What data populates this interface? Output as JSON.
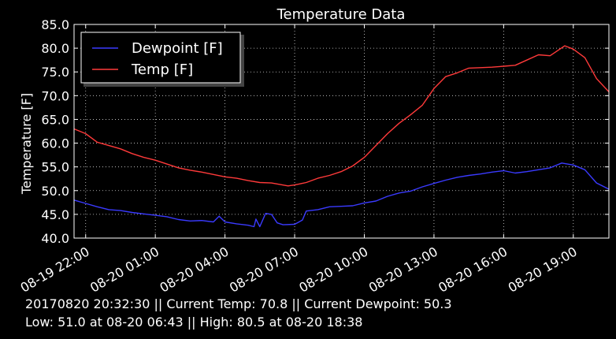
{
  "chart_data": {
    "type": "line",
    "title": "Temperature Data",
    "ylabel": "Temperature [F]",
    "xlabel": "",
    "ylim": [
      40,
      85
    ],
    "xlim": [
      "08-19 21:30",
      "08-20 20:32"
    ],
    "yticks": [
      "40.0",
      "45.0",
      "50.0",
      "55.0",
      "60.0",
      "65.0",
      "70.0",
      "75.0",
      "80.0",
      "85.0"
    ],
    "xticks": [
      "08-19 22:00",
      "08-20 01:00",
      "08-20 04:00",
      "08-20 07:00",
      "08-20 10:00",
      "08-20 13:00",
      "08-20 16:00",
      "08-20 19:00"
    ],
    "grid": true,
    "legend_position": "top-left",
    "series": [
      {
        "name": "Dewpoint [F]",
        "color": "#3a3aff",
        "points": [
          [
            "08-19 21:30",
            48.0
          ],
          [
            "08-19 22:00",
            47.3
          ],
          [
            "08-19 22:30",
            46.6
          ],
          [
            "08-19 23:00",
            46.0
          ],
          [
            "08-19 23:30",
            45.8
          ],
          [
            "08-20 00:00",
            45.4
          ],
          [
            "08-20 00:30",
            45.1
          ],
          [
            "08-20 01:00",
            44.8
          ],
          [
            "08-20 01:30",
            44.5
          ],
          [
            "08-20 02:00",
            43.9
          ],
          [
            "08-20 02:30",
            43.6
          ],
          [
            "08-20 03:00",
            43.7
          ],
          [
            "08-20 03:30",
            43.4
          ],
          [
            "08-20 03:45",
            44.6
          ],
          [
            "08-20 04:00",
            43.4
          ],
          [
            "08-20 04:30",
            43.0
          ],
          [
            "08-20 05:00",
            42.7
          ],
          [
            "08-20 05:15",
            42.4
          ],
          [
            "08-20 05:20",
            44.0
          ],
          [
            "08-20 05:30",
            42.4
          ],
          [
            "08-20 05:45",
            45.2
          ],
          [
            "08-20 06:00",
            45.0
          ],
          [
            "08-20 06:15",
            43.2
          ],
          [
            "08-20 06:30",
            42.8
          ],
          [
            "08-20 07:00",
            42.9
          ],
          [
            "08-20 07:20",
            43.8
          ],
          [
            "08-20 07:30",
            45.7
          ],
          [
            "08-20 08:00",
            46.0
          ],
          [
            "08-20 08:30",
            46.6
          ],
          [
            "08-20 09:00",
            46.7
          ],
          [
            "08-20 09:30",
            46.8
          ],
          [
            "08-20 10:00",
            47.4
          ],
          [
            "08-20 10:30",
            47.8
          ],
          [
            "08-20 11:00",
            48.8
          ],
          [
            "08-20 11:30",
            49.5
          ],
          [
            "08-20 12:00",
            49.9
          ],
          [
            "08-20 12:30",
            50.8
          ],
          [
            "08-20 13:00",
            51.5
          ],
          [
            "08-20 13:30",
            52.2
          ],
          [
            "08-20 14:00",
            52.8
          ],
          [
            "08-20 14:30",
            53.2
          ],
          [
            "08-20 15:00",
            53.5
          ],
          [
            "08-20 15:30",
            53.9
          ],
          [
            "08-20 16:00",
            54.2
          ],
          [
            "08-20 16:30",
            53.7
          ],
          [
            "08-20 17:00",
            54.0
          ],
          [
            "08-20 17:30",
            54.4
          ],
          [
            "08-20 18:00",
            54.8
          ],
          [
            "08-20 18:30",
            55.8
          ],
          [
            "08-20 19:00",
            55.4
          ],
          [
            "08-20 19:30",
            54.4
          ],
          [
            "08-20 20:00",
            51.6
          ],
          [
            "08-20 20:32",
            50.3
          ]
        ]
      },
      {
        "name": "Temp [F]",
        "color": "#ff3a3a",
        "points": [
          [
            "08-19 21:30",
            63.0
          ],
          [
            "08-19 22:00",
            62.0
          ],
          [
            "08-19 22:30",
            60.2
          ],
          [
            "08-19 23:00",
            59.5
          ],
          [
            "08-19 23:30",
            58.8
          ],
          [
            "08-20 00:00",
            57.8
          ],
          [
            "08-20 00:30",
            57.0
          ],
          [
            "08-20 01:00",
            56.4
          ],
          [
            "08-20 01:30",
            55.6
          ],
          [
            "08-20 02:00",
            54.8
          ],
          [
            "08-20 02:30",
            54.3
          ],
          [
            "08-20 03:00",
            53.9
          ],
          [
            "08-20 03:30",
            53.4
          ],
          [
            "08-20 04:00",
            52.9
          ],
          [
            "08-20 04:30",
            52.6
          ],
          [
            "08-20 05:00",
            52.1
          ],
          [
            "08-20 05:30",
            51.7
          ],
          [
            "08-20 06:00",
            51.6
          ],
          [
            "08-20 06:43",
            51.0
          ],
          [
            "08-20 07:00",
            51.2
          ],
          [
            "08-20 07:30",
            51.7
          ],
          [
            "08-20 08:00",
            52.6
          ],
          [
            "08-20 08:30",
            53.2
          ],
          [
            "08-20 09:00",
            54.0
          ],
          [
            "08-20 09:30",
            55.2
          ],
          [
            "08-20 10:00",
            57.0
          ],
          [
            "08-20 10:30",
            59.5
          ],
          [
            "08-20 11:00",
            62.0
          ],
          [
            "08-20 11:30",
            64.2
          ],
          [
            "08-20 12:00",
            66.0
          ],
          [
            "08-20 12:30",
            68.0
          ],
          [
            "08-20 13:00",
            71.5
          ],
          [
            "08-20 13:30",
            74.0
          ],
          [
            "08-20 14:00",
            74.8
          ],
          [
            "08-20 14:30",
            75.8
          ],
          [
            "08-20 15:00",
            75.9
          ],
          [
            "08-20 15:30",
            76.0
          ],
          [
            "08-20 16:00",
            76.2
          ],
          [
            "08-20 16:30",
            76.4
          ],
          [
            "08-20 17:00",
            77.5
          ],
          [
            "08-20 17:30",
            78.6
          ],
          [
            "08-20 18:00",
            78.4
          ],
          [
            "08-20 18:38",
            80.5
          ],
          [
            "08-20 19:00",
            79.8
          ],
          [
            "08-20 19:30",
            78.0
          ],
          [
            "08-20 20:00",
            73.6
          ],
          [
            "08-20 20:32",
            70.8
          ]
        ]
      }
    ]
  },
  "status": {
    "line1": "20170820 20:32:30 || Current Temp: 70.8 || Current Dewpoint: 50.3",
    "line2": "Low: 51.0 at 08-20 06:43 || High: 80.5 at 08-20 18:38"
  }
}
